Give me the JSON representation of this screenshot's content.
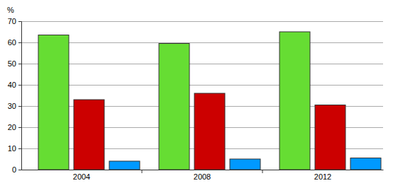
{
  "chart_data": {
    "type": "bar",
    "ylabel": "%",
    "categories": [
      "2004",
      "2008",
      "2012"
    ],
    "series": [
      {
        "color": "#66dd33",
        "values": [
          63.5,
          59.5,
          65
        ]
      },
      {
        "color": "#cc0000",
        "values": [
          33,
          36,
          30.5
        ]
      },
      {
        "color": "#0099ff",
        "values": [
          4,
          5,
          5.5
        ]
      }
    ],
    "ylim": [
      0,
      70
    ],
    "yticks": [
      0,
      10,
      20,
      30,
      40,
      50,
      60,
      70
    ],
    "grid": true
  }
}
